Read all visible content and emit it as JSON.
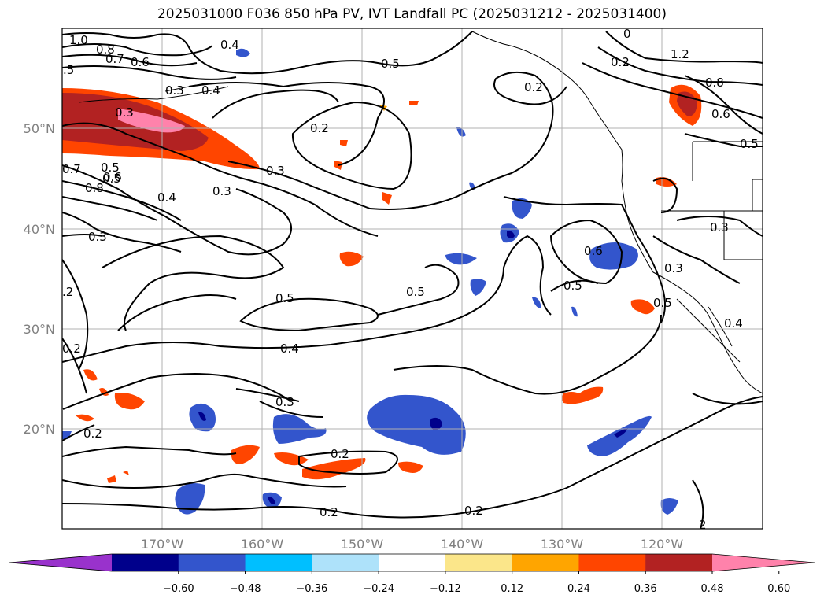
{
  "title": "2025031000 F036 850 hPa PV, IVT Landfall PC (2025031212 - 2025031400)",
  "lon_ticks": [
    "170°W",
    "160°W",
    "150°W",
    "140°W",
    "130°W",
    "120°W"
  ],
  "lat_ticks": [
    "50°N",
    "40°N",
    "30°N",
    "20°N"
  ],
  "contour_labels": [
    "1.0",
    "0.8",
    "0.7",
    "0.6",
    ".5",
    "0.4",
    "0.3",
    "0.2",
    "0.3",
    "0.5",
    "0.5",
    "0.2",
    "0.3",
    "0.4",
    "0.3",
    "0.5",
    "0.7",
    "0.8",
    "0.6",
    "0.4",
    "0.3",
    ".2",
    "0.2",
    "0.5",
    "0.4",
    "0.3",
    "0.2",
    "0.2",
    "0.5",
    "0.6",
    "0.5",
    "0.3",
    "0.3",
    "0.5",
    "0.4",
    "0.2",
    "0.2",
    "1.2",
    "0.8",
    "0.6",
    "0.5",
    "0",
    "2",
    "0.2"
  ],
  "colorbar": {
    "ticks": [
      "−0.60",
      "−0.48",
      "−0.36",
      "−0.24",
      "−0.12",
      "0.12",
      "0.24",
      "0.36",
      "0.48",
      "0.60"
    ],
    "colors": [
      "#9932cc",
      "#00008b",
      "#3355cc",
      "#00bfff",
      "#aee2fa",
      "#ffffff",
      "#fbe68a",
      "#ffa500",
      "#ff4500",
      "#b22222",
      "#ff82ab"
    ]
  }
}
